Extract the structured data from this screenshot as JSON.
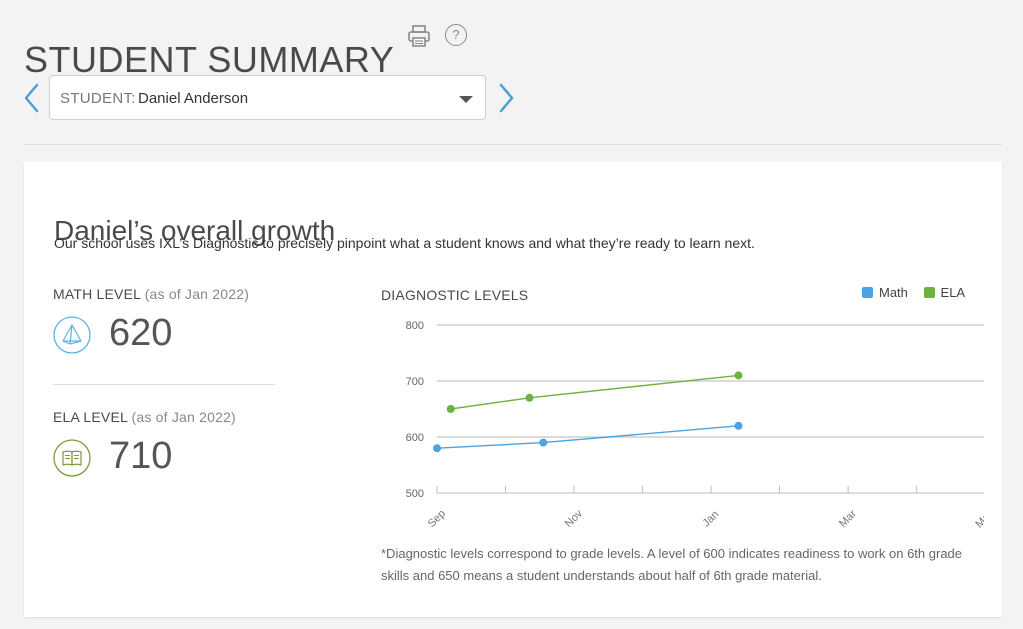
{
  "header": {
    "title": "STUDENT SUMMARY",
    "print_icon": "printer-icon",
    "help_icon": "help-icon",
    "help_glyph": "?"
  },
  "student_select": {
    "label": "STUDENT:",
    "value": "Daniel Anderson"
  },
  "card": {
    "title": "Daniel’s overall growth",
    "subtitle": "Our school uses IXL’s Diagnostic to precisely pinpoint what a student knows and what they’re ready to learn next."
  },
  "levels": {
    "math": {
      "label": "MATH LEVEL",
      "asof": "(as of Jan 2022)",
      "value": "620",
      "icon": "pyramid-icon",
      "color": "#5bb5e0"
    },
    "ela": {
      "label": "ELA LEVEL",
      "asof": "(as of Jan 2022)",
      "value": "710",
      "icon": "book-icon",
      "color": "#7a9a3a"
    }
  },
  "chart_title": "DIAGNOSTIC LEVELS",
  "chart_data": {
    "type": "line",
    "title": "DIAGNOSTIC LEVELS",
    "xlabel": "",
    "ylabel": "",
    "ylim": [
      500,
      800
    ],
    "yticks": [
      500,
      600,
      700,
      800
    ],
    "xticks": [
      "Sep",
      "Nov",
      "Jan",
      "Mar",
      "May"
    ],
    "xlim": [
      0,
      8.1
    ],
    "grid": true,
    "legend_position": "top-right",
    "series": [
      {
        "name": "Math",
        "color": "#4ba3e3",
        "x": [
          0,
          1.55,
          4.4
        ],
        "values": [
          580,
          590,
          620
        ]
      },
      {
        "name": "ELA",
        "color": "#6db33f",
        "x": [
          0.2,
          1.35,
          4.4
        ],
        "values": [
          650,
          670,
          710
        ]
      }
    ]
  },
  "footnote": "*Diagnostic levels correspond to grade levels. A level of 600 indicates readiness to work on 6th grade skills and 650 means a student understands about half of 6th grade material."
}
